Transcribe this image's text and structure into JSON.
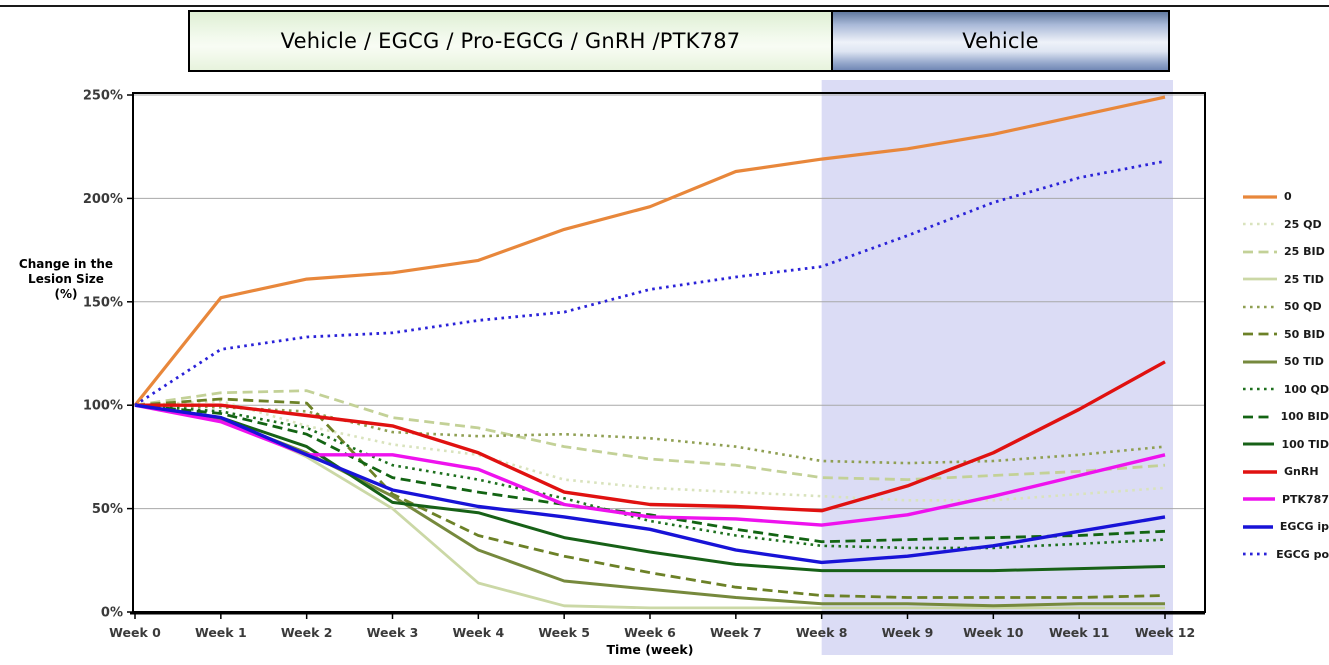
{
  "header": {
    "treatment_label": "Vehicle / EGCG / Pro-EGCG / GnRH /PTK787",
    "vehicle_label": "Vehicle"
  },
  "chart_data": {
    "type": "line",
    "title": "",
    "xlabel": "Time (week)",
    "ylabel_lines": [
      "Change in the",
      "Lesion Size",
      "(%)"
    ],
    "x_labels": [
      "Week 0",
      "Week 1",
      "Week 2",
      "Week 3",
      "Week 4",
      "Week 5",
      "Week 6",
      "Week 7",
      "Week 8",
      "Week 9",
      "Week 10",
      "Week 11",
      "Week 12"
    ],
    "y_ticks": [
      "0%",
      "50%",
      "100%",
      "150%",
      "200%",
      "250%"
    ],
    "ylim": [
      0,
      250
    ],
    "grid": true,
    "legend_position": "right",
    "shaded_region": {
      "from_week": 8,
      "to_week": 12,
      "color": "#dbdcf5",
      "meaning": "Vehicle phase"
    },
    "phases": {
      "weeks_0_to_8": "Vehicle / EGCG / Pro-EGCG / GnRH /PTK787",
      "weeks_8_to_12": "Vehicle"
    },
    "series": [
      {
        "name": "0",
        "color": "#e8873b",
        "style": "solid",
        "width": 3.2,
        "values": [
          100,
          152,
          161,
          164,
          170,
          185,
          196,
          213,
          219,
          224,
          231,
          240,
          249
        ]
      },
      {
        "name": "25 QD",
        "color": "#d9e3bd",
        "style": "dotted",
        "width": 2.6,
        "values": [
          100,
          102,
          90,
          81,
          76,
          64,
          60,
          58,
          56,
          54,
          54,
          57,
          60
        ]
      },
      {
        "name": "25 BID",
        "color": "#c3d197",
        "style": "dashed",
        "width": 2.8,
        "values": [
          100,
          106,
          107,
          94,
          89,
          80,
          74,
          71,
          65,
          64,
          66,
          68,
          71
        ]
      },
      {
        "name": "25 TID",
        "color": "#cbd8a6",
        "style": "solid",
        "width": 2.8,
        "values": [
          100,
          94,
          75,
          50,
          14,
          3,
          2,
          2,
          2,
          2,
          2,
          2,
          2
        ]
      },
      {
        "name": "50 QD",
        "color": "#8f9f52",
        "style": "dotted",
        "width": 2.6,
        "values": [
          100,
          99,
          97,
          87,
          85,
          86,
          84,
          80,
          73,
          72,
          73,
          76,
          80
        ]
      },
      {
        "name": "50 BID",
        "color": "#6c8127",
        "style": "dashed",
        "width": 2.8,
        "values": [
          100,
          103,
          101,
          57,
          37,
          27,
          19,
          12,
          8,
          7,
          7,
          7,
          8
        ]
      },
      {
        "name": "50 TID",
        "color": "#76893d",
        "style": "solid",
        "width": 3.0,
        "values": [
          100,
          93,
          77,
          56,
          30,
          15,
          11,
          7,
          4,
          4,
          3,
          4,
          4
        ]
      },
      {
        "name": "100 QD",
        "color": "#1e701e",
        "style": "dotted",
        "width": 2.6,
        "values": [
          100,
          97,
          89,
          71,
          64,
          55,
          44,
          37,
          32,
          31,
          31,
          33,
          35
        ]
      },
      {
        "name": "100 BID",
        "color": "#136413",
        "style": "dashed",
        "width": 2.8,
        "values": [
          100,
          96,
          86,
          65,
          58,
          52,
          47,
          40,
          34,
          35,
          36,
          37,
          39
        ]
      },
      {
        "name": "100 TID",
        "color": "#176117",
        "style": "solid",
        "width": 3.0,
        "values": [
          100,
          94,
          80,
          53,
          48,
          36,
          29,
          23,
          20,
          20,
          20,
          21,
          22
        ]
      },
      {
        "name": "GnRH",
        "color": "#e01110",
        "style": "solid",
        "width": 3.4,
        "values": [
          100,
          100,
          95,
          90,
          77,
          58,
          52,
          51,
          49,
          61,
          77,
          98,
          121
        ]
      },
      {
        "name": "PTK787",
        "color": "#ee12ee",
        "style": "solid",
        "width": 3.4,
        "values": [
          100,
          92,
          76,
          76,
          69,
          52,
          46,
          45,
          42,
          47,
          56,
          66,
          76
        ]
      },
      {
        "name": "EGCG ip",
        "color": "#1813d7",
        "style": "solid",
        "width": 3.4,
        "values": [
          100,
          94,
          76,
          59,
          51,
          46,
          40,
          30,
          24,
          27,
          32,
          39,
          46
        ]
      },
      {
        "name": "EGCG po",
        "color": "#2a22d8",
        "style": "dotted",
        "width": 2.8,
        "values": [
          100,
          127,
          133,
          135,
          141,
          145,
          156,
          162,
          167,
          182,
          198,
          210,
          218
        ]
      }
    ]
  }
}
